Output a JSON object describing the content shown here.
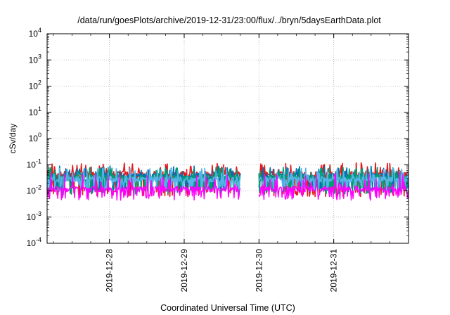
{
  "chart_data": {
    "type": "line",
    "title": "/data/run/goesPlots/archive/2019-12-31/23:00/flux/../bryn/5daysEarthData.plot",
    "xlabel": "Coordinated Universal Time (UTC)",
    "ylabel": "cSv/day",
    "yscale": "log",
    "ylim_exponents": [
      -4,
      4
    ],
    "y_tick_exponents": [
      -4,
      -3,
      -2,
      -1,
      0,
      1,
      2,
      3,
      4
    ],
    "xlim_days": [
      "2019-12-27T04:00",
      "2020-01-01T00:00"
    ],
    "x_tick_labels": [
      "2019-12-28",
      "2019-12-29",
      "2019-12-30",
      "2019-12-31"
    ],
    "x_tick_dates": [
      "2019-12-28T00:00",
      "2019-12-29T00:00",
      "2019-12-30T00:00",
      "2019-12-31T00:00"
    ],
    "grid": true,
    "data_gap": [
      "2019-12-29T18:00",
      "2019-12-30T00:00"
    ],
    "series": [
      {
        "color": "#e41a1c",
        "baseline": 0.045,
        "floor": 0.0075,
        "spike_max": 0.12
      },
      {
        "color": "#0072b2",
        "baseline": 0.038,
        "floor": 0.011,
        "spike_max": 0.09
      },
      {
        "color": "#009e73",
        "baseline": 0.032,
        "floor": 0.009,
        "spike_max": 0.08
      },
      {
        "color": "#56b4e9",
        "baseline": 0.028,
        "floor": 0.013,
        "spike_max": 0.075
      },
      {
        "color": "#ff00ff",
        "baseline": 0.012,
        "floor": 0.0055,
        "spike_max": 0.05
      }
    ]
  }
}
